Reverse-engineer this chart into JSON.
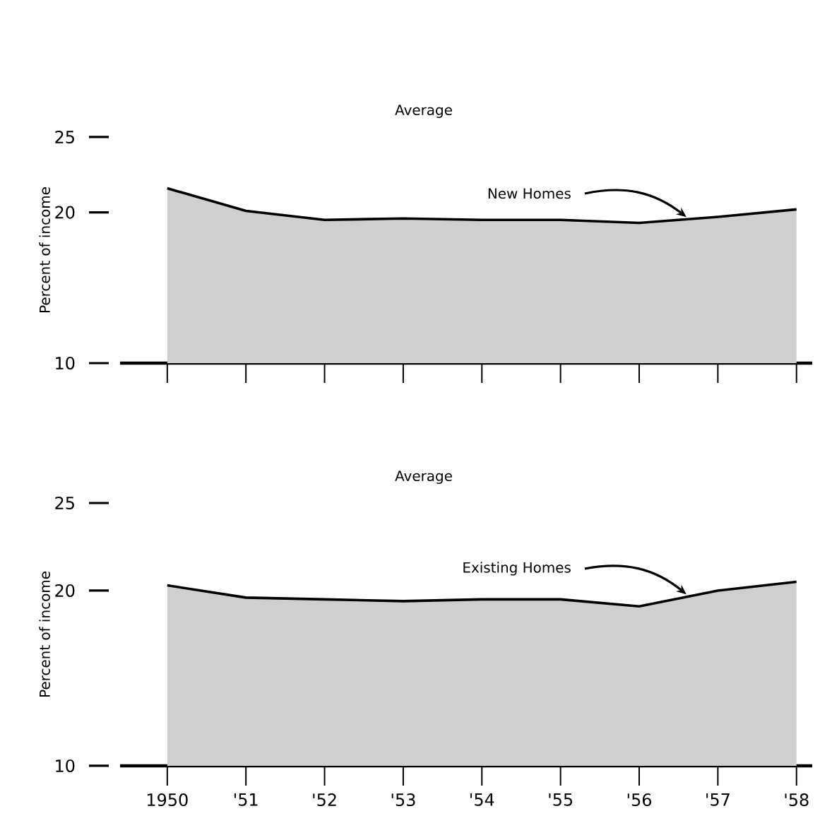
{
  "chart_data": [
    {
      "type": "area",
      "title": "Average",
      "ylabel": "Percent of income",
      "categories": [
        null,
        null,
        null,
        null,
        null,
        null,
        null,
        null,
        null
      ],
      "series": [
        {
          "name": "New Homes",
          "color": "#cfcfcf",
          "values": [
            21.6,
            20.1,
            19.5,
            19.6,
            19.5,
            19.5,
            19.3,
            19.7,
            20.2
          ]
        }
      ],
      "ylim": [
        10,
        25
      ],
      "yticks": [
        10,
        20,
        25
      ],
      "tick_labels": "y"
    },
    {
      "type": "area",
      "title": "Average",
      "ylabel": "Percent of income",
      "categories": [
        "1950",
        "'51",
        "'52",
        "'53",
        "'54",
        "'55",
        "'56",
        "'57",
        "'58"
      ],
      "series": [
        {
          "name": "Existing Homes",
          "color": "#cfcfcf",
          "values": [
            20.3,
            19.6,
            19.5,
            19.4,
            19.5,
            19.5,
            19.1,
            20.0,
            20.5
          ]
        }
      ],
      "ylim": [
        10,
        25
      ],
      "yticks": [
        10,
        20,
        25
      ]
    }
  ]
}
